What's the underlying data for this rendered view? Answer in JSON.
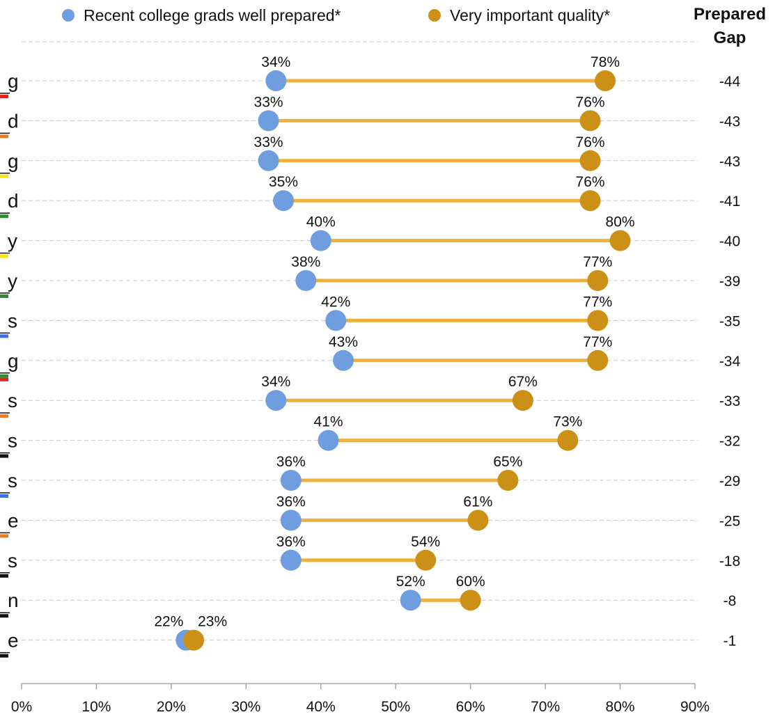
{
  "chart_data": {
    "type": "dumbbell",
    "title": "",
    "xlabel": "",
    "ylabel": "",
    "xlim": [
      0,
      90
    ],
    "x_ticks": [
      0,
      10,
      20,
      30,
      40,
      50,
      60,
      70,
      80,
      90
    ],
    "x_tick_labels": [
      "0%",
      "10%",
      "20%",
      "30%",
      "40%",
      "50%",
      "60%",
      "70%",
      "80%",
      "90%"
    ],
    "grid": "horizontal dashed",
    "legend_position": "top",
    "header_fragment": ":",
    "gap_header_line1": "Prepared",
    "gap_header_line2": "Gap",
    "series": [
      {
        "name": "Recent college grads well prepared*",
        "color": "#6f9ee0",
        "values": [
          34,
          33,
          33,
          35,
          40,
          38,
          42,
          43,
          34,
          41,
          36,
          36,
          36,
          52,
          22
        ]
      },
      {
        "name": "Very important quality*",
        "color": "#cc9016",
        "values": [
          78,
          76,
          76,
          76,
          80,
          77,
          77,
          77,
          67,
          73,
          65,
          61,
          54,
          60,
          23
        ]
      }
    ],
    "value_labels": {
      "prepared": [
        "34%",
        "33%",
        "33%",
        "35%",
        "40%",
        "38%",
        "42%",
        "43%",
        "34%",
        "41%",
        "36%",
        "36%",
        "36%",
        "52%",
        "22%"
      ],
      "important": [
        "78%",
        "76%",
        "76%",
        "76%",
        "80%",
        "77%",
        "77%",
        "77%",
        "67%",
        "73%",
        "65%",
        "61%",
        "54%",
        "60%",
        "23%"
      ]
    },
    "gaps": [
      "-44",
      "-43",
      "-43",
      "-41",
      "-40",
      "-39",
      "-35",
      "-34",
      "-33",
      "-32",
      "-29",
      "-25",
      "-18",
      "-8",
      "-1"
    ],
    "category_fragments": [
      "g",
      "d",
      "g",
      "d",
      "y",
      "y",
      "s",
      "g",
      "s",
      "s",
      "s",
      "e",
      "s",
      "n",
      "e"
    ],
    "category_marker_colors": [
      [
        "#e8221c"
      ],
      [
        "#f07a1e"
      ],
      [
        "#f5e60f"
      ],
      [
        "#2e8b2e"
      ],
      [
        "#f5e60f"
      ],
      [
        "#2e8b2e"
      ],
      [
        "#3e6ee0"
      ],
      [
        "#2e8b2e",
        "#e8221c"
      ],
      [
        "#f07a1e"
      ],
      [
        "#111111"
      ],
      [
        "#3e6ee0"
      ],
      [
        "#f07a1e"
      ],
      [
        "#111111"
      ],
      [
        "#111111"
      ],
      [
        "#111111"
      ]
    ],
    "connector_color": "#f0b03c"
  }
}
